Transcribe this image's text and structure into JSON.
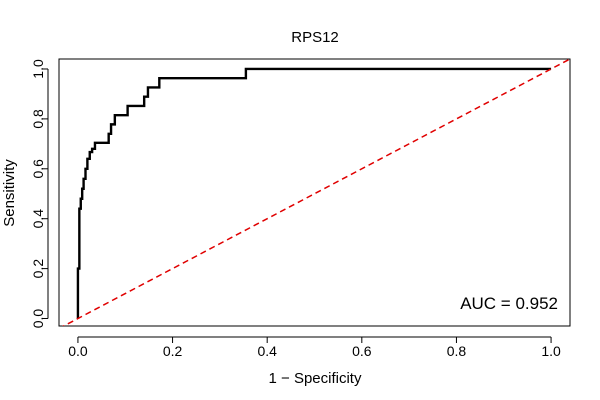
{
  "chart_data": {
    "type": "line",
    "title": "RPS12",
    "xlabel": "1 − Specificity",
    "ylabel": "Sensitivity",
    "xlim": [
      -0.04,
      1.04
    ],
    "ylim": [
      -0.03,
      1.04
    ],
    "x_ticks": [
      0.0,
      0.2,
      0.4,
      0.6,
      0.8,
      1.0
    ],
    "y_ticks": [
      0.0,
      0.2,
      0.4,
      0.6,
      0.8,
      1.0
    ],
    "x_tick_labels": [
      "0.0",
      "0.2",
      "0.4",
      "0.6",
      "0.8",
      "1.0"
    ],
    "y_tick_labels": [
      "0.0",
      "0.2",
      "0.4",
      "0.6",
      "0.8",
      "1.0"
    ],
    "grid": false,
    "annotation": "AUC = 0.952",
    "colors": {
      "roc": "#000000",
      "diagonal": "#e00000"
    },
    "series": [
      {
        "style": "step",
        "x": [
          0.0,
          0.0,
          0.003,
          0.003,
          0.006,
          0.006,
          0.009,
          0.009,
          0.012,
          0.012,
          0.016,
          0.016,
          0.02,
          0.02,
          0.025,
          0.025,
          0.03,
          0.03,
          0.036,
          0.036,
          0.065,
          0.065,
          0.07,
          0.07,
          0.078,
          0.078,
          0.105,
          0.105,
          0.14,
          0.14,
          0.148,
          0.148,
          0.172,
          0.172,
          0.355,
          0.355,
          1.0
        ],
        "y": [
          0.0,
          0.2,
          0.2,
          0.44,
          0.44,
          0.48,
          0.48,
          0.52,
          0.52,
          0.56,
          0.56,
          0.6,
          0.6,
          0.64,
          0.64,
          0.667,
          0.667,
          0.68,
          0.68,
          0.704,
          0.704,
          0.74,
          0.74,
          0.778,
          0.778,
          0.815,
          0.815,
          0.852,
          0.852,
          0.889,
          0.889,
          0.926,
          0.926,
          0.963,
          0.963,
          1.0,
          1.0
        ]
      },
      {
        "style": "dashed-diagonal",
        "x": [
          -0.04,
          1.04
        ],
        "y": [
          -0.04,
          1.04
        ]
      }
    ]
  }
}
